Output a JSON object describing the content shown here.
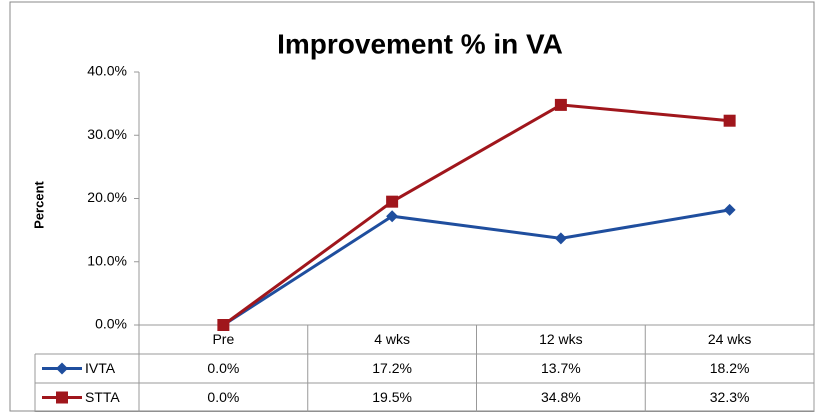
{
  "chart_data": {
    "type": "line",
    "title": "Improvement % in VA",
    "y_label": "Percent",
    "categories": [
      "Pre",
      "4 wks",
      "12 wks",
      "24 wks"
    ],
    "series": [
      {
        "name": "IVTA",
        "color": "#1f4e9e",
        "marker": "diamond",
        "values": [
          0,
          17.2,
          13.7,
          18.2
        ],
        "value_labels": [
          "0.0%",
          "17.2%",
          "13.7%",
          "18.2%"
        ]
      },
      {
        "name": "STTA",
        "color": "#a0161c",
        "marker": "square",
        "values": [
          0,
          19.5,
          34.8,
          32.3
        ],
        "value_labels": [
          "0.0%",
          "19.5%",
          "34.8%",
          "32.3%"
        ]
      }
    ],
    "ylim": [
      0,
      40
    ],
    "yticks": [
      {
        "value": 0,
        "label": "0.0%"
      },
      {
        "value": 10,
        "label": "10.0%"
      },
      {
        "value": 20,
        "label": "20.0%"
      },
      {
        "value": 30,
        "label": "30.0%"
      },
      {
        "value": 40,
        "label": "40.0%"
      }
    ],
    "grid": false
  }
}
